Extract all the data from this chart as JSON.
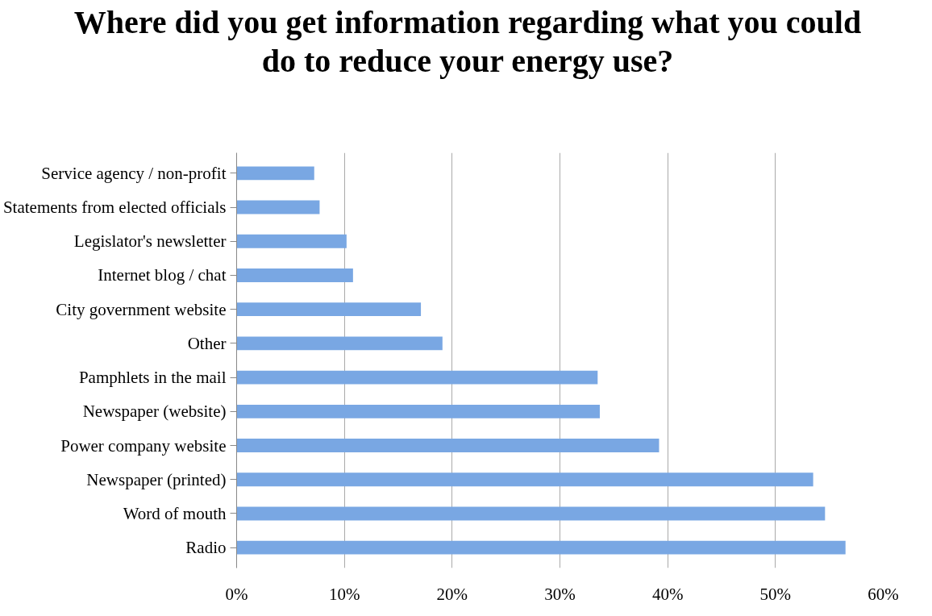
{
  "chart_data": {
    "type": "bar",
    "orientation": "horizontal",
    "title": "Where did you get information regarding what you could do to reduce your energy use?",
    "categories": [
      "Service agency / non-profit",
      "Statements from elected officials",
      "Legislator's newsletter",
      "Internet blog / chat",
      "City government website",
      "Other",
      "Pamphlets in the mail",
      "Newspaper (website)",
      "Power company website",
      "Newspaper (printed)",
      "Word of mouth",
      "Radio"
    ],
    "values": [
      7.2,
      7.7,
      10.2,
      10.8,
      17.1,
      19.1,
      33.5,
      33.7,
      39.2,
      53.5,
      54.6,
      56.5
    ],
    "color": "#79a7e3",
    "xlim": [
      0,
      60
    ],
    "xticks": [
      {
        "value": 0,
        "label": "0%"
      },
      {
        "value": 10,
        "label": "10%"
      },
      {
        "value": 20,
        "label": "20%"
      },
      {
        "value": 30,
        "label": "30%"
      },
      {
        "value": 40,
        "label": "40%"
      },
      {
        "value": 50,
        "label": "50%"
      },
      {
        "value": 60,
        "label": "60%"
      }
    ],
    "grid": "x"
  }
}
